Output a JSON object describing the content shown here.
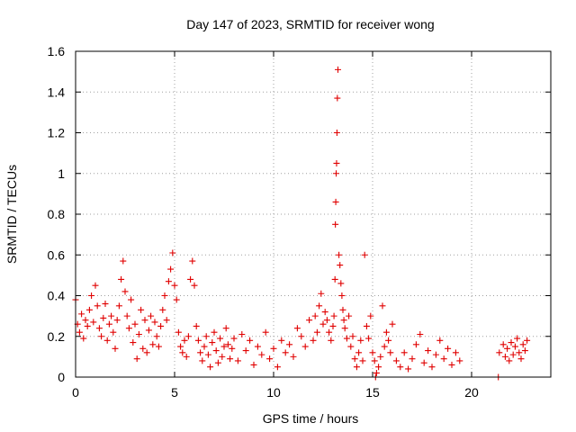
{
  "chart_data": {
    "type": "scatter",
    "title": "Day 147 of 2023, SRMTID for receiver wong",
    "xlabel": "GPS time / hours",
    "ylabel": "SRMTID / TECUs",
    "xlim": [
      0,
      24
    ],
    "ylim": [
      0,
      1.6
    ],
    "x_ticks": [
      0,
      5,
      10,
      15,
      20
    ],
    "x_tick_labels": [
      "0",
      "5",
      "10",
      "15",
      "20"
    ],
    "y_ticks": [
      0,
      0.2,
      0.4,
      0.6,
      0.8,
      1.0,
      1.2,
      1.4,
      1.6
    ],
    "y_tick_labels": [
      "0",
      "0.2",
      "0.4",
      "0.6",
      "0.8",
      "1",
      "1.2",
      "1.4",
      "1.6"
    ],
    "grid": true,
    "marker": "+",
    "color": "#e00000",
    "series": [
      {
        "name": "SRMTID",
        "x": [
          0.0,
          0.1,
          0.2,
          0.3,
          0.4,
          0.5,
          0.6,
          0.7,
          0.8,
          0.9,
          1.0,
          1.1,
          1.2,
          1.3,
          1.4,
          1.5,
          1.6,
          1.7,
          1.8,
          1.9,
          2.0,
          2.1,
          2.2,
          2.3,
          2.4,
          2.5,
          2.6,
          2.7,
          2.8,
          2.9,
          3.0,
          3.1,
          3.2,
          3.3,
          3.4,
          3.5,
          3.6,
          3.7,
          3.8,
          3.9,
          4.0,
          4.1,
          4.2,
          4.3,
          4.4,
          4.5,
          4.6,
          4.7,
          4.8,
          4.9,
          5.0,
          5.1,
          5.2,
          5.3,
          5.4,
          5.5,
          5.6,
          5.7,
          5.8,
          5.9,
          6.0,
          6.1,
          6.2,
          6.3,
          6.4,
          6.5,
          6.6,
          6.7,
          6.8,
          6.9,
          7.0,
          7.1,
          7.2,
          7.3,
          7.4,
          7.5,
          7.6,
          7.7,
          7.8,
          7.9,
          8.0,
          8.2,
          8.4,
          8.6,
          8.8,
          9.0,
          9.2,
          9.4,
          9.6,
          9.8,
          10.0,
          10.2,
          10.4,
          10.6,
          10.8,
          11.0,
          11.2,
          11.4,
          11.6,
          11.8,
          12.0,
          12.1,
          12.2,
          12.3,
          12.4,
          12.5,
          12.6,
          12.7,
          12.8,
          12.9,
          13.0,
          13.05,
          13.1,
          13.12,
          13.14,
          13.16,
          13.18,
          13.2,
          13.22,
          13.25,
          13.3,
          13.35,
          13.4,
          13.45,
          13.5,
          13.55,
          13.6,
          13.7,
          13.8,
          13.9,
          14.0,
          14.1,
          14.2,
          14.3,
          14.4,
          14.5,
          14.6,
          14.7,
          14.8,
          14.9,
          15.0,
          15.1,
          15.15,
          15.2,
          15.3,
          15.4,
          15.5,
          15.6,
          15.7,
          15.8,
          15.9,
          16.0,
          16.2,
          16.4,
          16.6,
          16.8,
          17.0,
          17.2,
          17.4,
          17.6,
          17.8,
          18.0,
          18.2,
          18.4,
          18.6,
          18.8,
          19.0,
          19.2,
          19.4,
          21.35,
          21.4,
          21.6,
          21.7,
          21.8,
          21.9,
          22.0,
          22.1,
          22.2,
          22.3,
          22.4,
          22.5,
          22.6,
          22.7,
          22.8
        ],
        "y": [
          0.38,
          0.26,
          0.22,
          0.31,
          0.19,
          0.28,
          0.25,
          0.33,
          0.4,
          0.27,
          0.45,
          0.35,
          0.24,
          0.2,
          0.29,
          0.36,
          0.18,
          0.26,
          0.3,
          0.22,
          0.14,
          0.28,
          0.35,
          0.48,
          0.57,
          0.42,
          0.3,
          0.24,
          0.38,
          0.17,
          0.26,
          0.09,
          0.21,
          0.33,
          0.14,
          0.28,
          0.12,
          0.23,
          0.3,
          0.16,
          0.27,
          0.2,
          0.15,
          0.25,
          0.33,
          0.4,
          0.28,
          0.47,
          0.53,
          0.61,
          0.45,
          0.38,
          0.22,
          0.15,
          0.12,
          0.18,
          0.1,
          0.2,
          0.48,
          0.57,
          0.45,
          0.25,
          0.18,
          0.12,
          0.08,
          0.15,
          0.2,
          0.11,
          0.05,
          0.17,
          0.22,
          0.13,
          0.07,
          0.19,
          0.1,
          0.15,
          0.24,
          0.16,
          0.09,
          0.14,
          0.19,
          0.08,
          0.21,
          0.13,
          0.18,
          0.06,
          0.15,
          0.11,
          0.22,
          0.09,
          0.14,
          0.05,
          0.18,
          0.12,
          0.16,
          0.1,
          0.24,
          0.2,
          0.15,
          0.28,
          0.18,
          0.3,
          0.22,
          0.35,
          0.41,
          0.26,
          0.32,
          0.28,
          0.22,
          0.18,
          0.25,
          0.3,
          0.48,
          0.75,
          0.86,
          1.0,
          1.05,
          1.2,
          1.37,
          1.51,
          0.6,
          0.55,
          0.46,
          0.4,
          0.33,
          0.28,
          0.24,
          0.19,
          0.3,
          0.15,
          0.2,
          0.09,
          0.05,
          0.12,
          0.18,
          0.08,
          0.6,
          0.25,
          0.19,
          0.3,
          0.12,
          0.08,
          0.0,
          0.02,
          0.05,
          0.1,
          0.35,
          0.15,
          0.22,
          0.18,
          0.12,
          0.26,
          0.08,
          0.05,
          0.12,
          0.04,
          0.09,
          0.16,
          0.21,
          0.07,
          0.13,
          0.05,
          0.11,
          0.18,
          0.09,
          0.14,
          0.06,
          0.12,
          0.08,
          0.0,
          0.12,
          0.16,
          0.1,
          0.14,
          0.08,
          0.17,
          0.11,
          0.15,
          0.19,
          0.12,
          0.09,
          0.16,
          0.13,
          0.18
        ]
      }
    ]
  }
}
